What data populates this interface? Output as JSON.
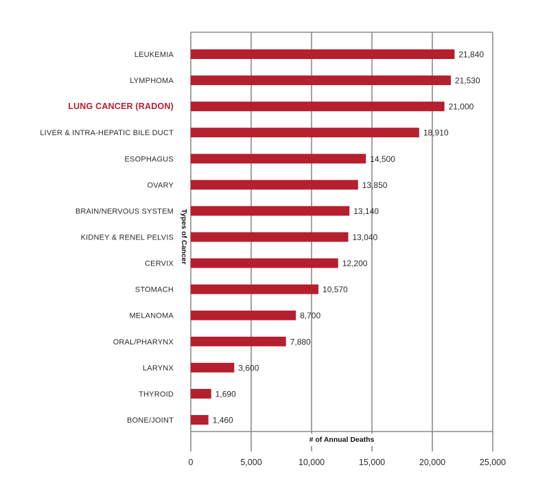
{
  "chart_data": {
    "type": "bar",
    "orientation": "horizontal",
    "title": "",
    "xlabel": "# of Annual Deaths",
    "ylabel": "Types of Cancer",
    "xlim": [
      0,
      25000
    ],
    "xticks": [
      0,
      5000,
      10000,
      15000,
      20000,
      25000
    ],
    "xtick_labels": [
      "0",
      "5,000",
      "10,000",
      "15,000",
      "20,000",
      "25,000"
    ],
    "grid": true,
    "categories": [
      "LEUKEMIA",
      "LYMPHOMA",
      "LUNG CANCER (RADON)",
      "LIVER & INTRA-HEPATIC BILE DUCT",
      "ESOPHAGUS",
      "OVARY",
      "BRAIN/NERVOUS SYSTEM",
      "KIDNEY & RENEL PELVIS",
      "CERVIX",
      "STOMACH",
      "MELANOMA",
      "ORAL/PHARYNX",
      "LARYNX",
      "THYROID",
      "BONE/JOINT"
    ],
    "values": [
      21840,
      21530,
      21000,
      18910,
      14500,
      13850,
      13140,
      13040,
      12200,
      10570,
      8700,
      7880,
      3600,
      1690,
      1460
    ],
    "value_labels": [
      "21,840",
      "21,530",
      "21,000",
      "18,910",
      "14,500",
      "13,850",
      "13,140",
      "13,040",
      "12,200",
      "10,570",
      "8,700",
      "7,880",
      "3,600",
      "1,690",
      "1,460"
    ],
    "highlighted_category": "LUNG CANCER (RADON)",
    "colors": {
      "bar": "#b51f2e",
      "highlight_label": "#b51f2e",
      "grid": "#8a8a8a",
      "text": "#2b2b2b"
    }
  }
}
